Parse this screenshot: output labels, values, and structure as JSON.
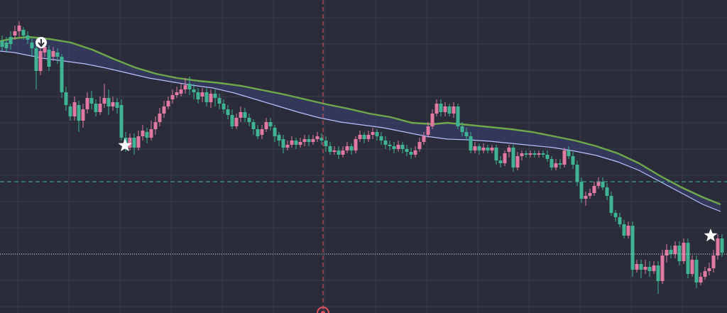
{
  "chart_data": {
    "type": "candlestick",
    "ylim": [
      0,
      441
    ],
    "grid": true,
    "colors": {
      "background": "#2b2c3a",
      "grid": "#3a3c4b",
      "bullish": "#e07aa1",
      "bearish": "#3fb394",
      "ema_fast": "#b9bfff",
      "ema_slow": "#6ea84a",
      "cloud_fill": "#3a4474",
      "crosshair_h": "#3fb394",
      "crosshair_v": "#e05060",
      "last_price_line": "#d8d8e0"
    },
    "crosshair": {
      "x": 455,
      "y": 256
    },
    "last_price": 358,
    "markers": [
      {
        "name": "signal-down-icon",
        "x": 58,
        "y": 60
      },
      {
        "name": "star-icon",
        "x": 176,
        "y": 205
      },
      {
        "name": "star-icon",
        "x": 1001,
        "y": 332
      }
    ],
    "candles": [
      [
        3,
        58,
        66,
        50,
        72
      ],
      [
        9,
        60,
        68,
        52,
        74
      ],
      [
        15,
        52,
        62,
        44,
        70
      ],
      [
        21,
        50,
        44,
        36,
        56
      ],
      [
        27,
        44,
        36,
        30,
        52
      ],
      [
        33,
        42,
        50,
        38,
        56
      ],
      [
        39,
        50,
        56,
        44,
        62
      ],
      [
        45,
        60,
        68,
        54,
        80
      ],
      [
        51,
        68,
        100,
        60,
        126
      ],
      [
        57,
        100,
        72,
        64,
        106
      ],
      [
        63,
        74,
        66,
        60,
        80
      ],
      [
        69,
        70,
        94,
        64,
        100
      ],
      [
        75,
        80,
        72,
        66,
        86
      ],
      [
        81,
        74,
        80,
        68,
        90
      ],
      [
        87,
        80,
        130,
        76,
        138
      ],
      [
        93,
        130,
        148,
        122,
        156
      ],
      [
        99,
        150,
        164,
        146,
        170
      ],
      [
        105,
        164,
        144,
        136,
        170
      ],
      [
        111,
        148,
        170,
        142,
        186
      ],
      [
        117,
        170,
        154,
        146,
        180
      ],
      [
        123,
        154,
        138,
        130,
        160
      ],
      [
        129,
        138,
        146,
        128,
        154
      ],
      [
        135,
        146,
        158,
        140,
        164
      ],
      [
        141,
        158,
        146,
        136,
        162
      ],
      [
        147,
        146,
        138,
        118,
        152
      ],
      [
        153,
        138,
        150,
        126,
        162
      ],
      [
        159,
        150,
        144,
        136,
        156
      ],
      [
        165,
        144,
        152,
        138,
        160
      ],
      [
        171,
        148,
        194,
        140,
        198
      ],
      [
        177,
        194,
        210,
        186,
        214
      ],
      [
        183,
        208,
        194,
        188,
        212
      ],
      [
        189,
        194,
        208,
        188,
        218
      ],
      [
        195,
        208,
        192,
        184,
        212
      ],
      [
        201,
        192,
        184,
        176,
        198
      ],
      [
        207,
        186,
        194,
        180,
        202
      ],
      [
        213,
        194,
        182,
        170,
        198
      ],
      [
        219,
        182,
        172,
        164,
        190
      ],
      [
        225,
        172,
        160,
        152,
        178
      ],
      [
        231,
        160,
        150,
        142,
        166
      ],
      [
        237,
        150,
        142,
        136,
        154
      ],
      [
        243,
        140,
        134,
        126,
        146
      ],
      [
        249,
        134,
        130,
        122,
        138
      ],
      [
        255,
        132,
        126,
        118,
        136
      ],
      [
        261,
        126,
        120,
        110,
        132
      ],
      [
        267,
        118,
        126,
        108,
        134
      ],
      [
        273,
        126,
        130,
        118,
        140
      ],
      [
        279,
        130,
        140,
        124,
        146
      ],
      [
        285,
        136,
        130,
        124,
        144
      ],
      [
        291,
        130,
        144,
        124,
        150
      ],
      [
        297,
        144,
        132,
        126,
        152
      ],
      [
        303,
        132,
        138,
        126,
        150
      ],
      [
        309,
        138,
        146,
        132,
        154
      ],
      [
        315,
        146,
        154,
        140,
        160
      ],
      [
        321,
        154,
        162,
        148,
        168
      ],
      [
        327,
        162,
        178,
        154,
        182
      ],
      [
        333,
        178,
        166,
        160,
        182
      ],
      [
        339,
        166,
        158,
        150,
        172
      ],
      [
        345,
        158,
        166,
        152,
        172
      ],
      [
        351,
        166,
        172,
        160,
        178
      ],
      [
        357,
        172,
        182,
        168,
        190
      ],
      [
        363,
        182,
        192,
        176,
        196
      ],
      [
        369,
        190,
        182,
        176,
        196
      ],
      [
        375,
        182,
        172,
        166,
        186
      ],
      [
        381,
        172,
        178,
        166,
        184
      ],
      [
        387,
        180,
        192,
        176,
        200
      ],
      [
        393,
        190,
        198,
        186,
        206
      ],
      [
        399,
        196,
        208,
        190,
        216
      ],
      [
        405,
        208,
        204,
        198,
        212
      ],
      [
        411,
        204,
        198,
        192,
        208
      ],
      [
        417,
        198,
        204,
        194,
        210
      ],
      [
        423,
        204,
        200,
        194,
        208
      ],
      [
        429,
        200,
        196,
        190,
        206
      ],
      [
        435,
        196,
        200,
        190,
        206
      ],
      [
        441,
        200,
        196,
        190,
        204
      ],
      [
        447,
        196,
        192,
        186,
        200
      ],
      [
        453,
        194,
        198,
        188,
        204
      ],
      [
        459,
        198,
        206,
        192,
        214
      ],
      [
        465,
        206,
        214,
        200,
        218
      ],
      [
        471,
        214,
        212,
        206,
        218
      ],
      [
        477,
        212,
        218,
        206,
        224
      ],
      [
        483,
        218,
        212,
        206,
        222
      ],
      [
        489,
        212,
        206,
        200,
        216
      ],
      [
        495,
        206,
        212,
        202,
        218
      ],
      [
        501,
        212,
        196,
        192,
        216
      ],
      [
        507,
        196,
        190,
        184,
        200
      ],
      [
        513,
        190,
        196,
        186,
        202
      ],
      [
        519,
        196,
        190,
        184,
        200
      ],
      [
        525,
        190,
        186,
        180,
        196
      ],
      [
        531,
        186,
        192,
        182,
        198
      ],
      [
        537,
        192,
        198,
        186,
        204
      ],
      [
        543,
        198,
        204,
        192,
        210
      ],
      [
        549,
        204,
        206,
        198,
        212
      ],
      [
        555,
        206,
        210,
        200,
        216
      ],
      [
        561,
        210,
        204,
        198,
        214
      ],
      [
        567,
        204,
        210,
        200,
        216
      ],
      [
        573,
        210,
        214,
        204,
        220
      ],
      [
        579,
        214,
        218,
        208,
        224
      ],
      [
        585,
        218,
        212,
        206,
        222
      ],
      [
        591,
        210,
        200,
        194,
        214
      ],
      [
        597,
        200,
        192,
        186,
        204
      ],
      [
        603,
        190,
        178,
        172,
        194
      ],
      [
        609,
        178,
        160,
        154,
        182
      ],
      [
        615,
        160,
        146,
        140,
        164
      ],
      [
        621,
        146,
        158,
        140,
        164
      ],
      [
        627,
        158,
        150,
        144,
        164
      ],
      [
        633,
        150,
        160,
        146,
        164
      ],
      [
        639,
        160,
        150,
        144,
        166
      ],
      [
        645,
        150,
        178,
        146,
        182
      ],
      [
        651,
        178,
        186,
        172,
        192
      ],
      [
        657,
        186,
        192,
        180,
        198
      ],
      [
        663,
        192,
        212,
        186,
        216
      ],
      [
        669,
        212,
        206,
        200,
        216
      ],
      [
        675,
        206,
        212,
        202,
        218
      ],
      [
        681,
        212,
        208,
        202,
        216
      ],
      [
        687,
        208,
        212,
        204,
        216
      ],
      [
        693,
        212,
        208,
        204,
        216
      ],
      [
        699,
        208,
        226,
        204,
        232
      ],
      [
        705,
        226,
        230,
        220,
        236
      ],
      [
        711,
        230,
        216,
        212,
        234
      ],
      [
        717,
        214,
        208,
        204,
        222
      ],
      [
        723,
        208,
        236,
        204,
        242
      ],
      [
        729,
        236,
        220,
        214,
        240
      ],
      [
        735,
        220,
        216,
        212,
        226
      ],
      [
        741,
        216,
        218,
        212,
        222
      ],
      [
        747,
        218,
        216,
        212,
        222
      ],
      [
        753,
        216,
        218,
        212,
        222
      ],
      [
        759,
        218,
        216,
        212,
        222
      ],
      [
        765,
        216,
        218,
        212,
        222
      ],
      [
        771,
        218,
        224,
        212,
        228
      ],
      [
        777,
        224,
        236,
        220,
        240
      ],
      [
        783,
        236,
        230,
        224,
        240
      ],
      [
        789,
        230,
        232,
        224,
        238
      ],
      [
        795,
        232,
        212,
        208,
        236
      ],
      [
        801,
        212,
        220,
        206,
        224
      ],
      [
        807,
        220,
        232,
        214,
        238
      ],
      [
        813,
        232,
        256,
        226,
        262
      ],
      [
        819,
        256,
        280,
        250,
        286
      ],
      [
        825,
        280,
        276,
        270,
        290
      ],
      [
        831,
        276,
        272,
        266,
        280
      ],
      [
        837,
        272,
        262,
        256,
        276
      ],
      [
        843,
        262,
        256,
        250,
        266
      ],
      [
        849,
        256,
        264,
        250,
        268
      ],
      [
        855,
        264,
        276,
        258,
        282
      ],
      [
        861,
        276,
        300,
        270,
        304
      ],
      [
        867,
        300,
        306,
        296,
        312
      ],
      [
        873,
        306,
        316,
        300,
        320
      ],
      [
        879,
        316,
        332,
        310,
        336
      ],
      [
        885,
        332,
        318,
        312,
        336
      ],
      [
        891,
        318,
        380,
        312,
        390
      ],
      [
        897,
        380,
        372,
        366,
        384
      ],
      [
        903,
        372,
        380,
        366,
        392
      ],
      [
        909,
        380,
        376,
        366,
        386
      ],
      [
        915,
        376,
        382,
        368,
        390
      ],
      [
        921,
        382,
        374,
        368,
        386
      ],
      [
        927,
        374,
        396,
        368,
        414
      ],
      [
        933,
        396,
        360,
        352,
        400
      ],
      [
        939,
        360,
        352,
        344,
        370
      ],
      [
        945,
        352,
        358,
        346,
        364
      ],
      [
        951,
        358,
        346,
        340,
        364
      ],
      [
        957,
        346,
        368,
        340,
        374
      ],
      [
        963,
        368,
        342,
        336,
        372
      ],
      [
        969,
        342,
        386,
        336,
        392
      ],
      [
        975,
        386,
        366,
        360,
        390
      ],
      [
        981,
        366,
        398,
        360,
        406
      ],
      [
        987,
        398,
        390,
        384,
        402
      ],
      [
        993,
        390,
        382,
        376,
        394
      ],
      [
        999,
        382,
        378,
        370,
        388
      ],
      [
        1005,
        378,
        360,
        352,
        384
      ],
      [
        1011,
        360,
        336,
        330,
        366
      ],
      [
        1017,
        336,
        356,
        330,
        362
      ]
    ],
    "ema_fast": [
      [
        0,
        72
      ],
      [
        20,
        74
      ],
      [
        40,
        78
      ],
      [
        60,
        82
      ],
      [
        90,
        86
      ],
      [
        120,
        90
      ],
      [
        150,
        96
      ],
      [
        180,
        103
      ],
      [
        210,
        110
      ],
      [
        240,
        115
      ],
      [
        270,
        120
      ],
      [
        300,
        124
      ],
      [
        330,
        131
      ],
      [
        360,
        140
      ],
      [
        390,
        149
      ],
      [
        420,
        158
      ],
      [
        450,
        166
      ],
      [
        480,
        172
      ],
      [
        510,
        176
      ],
      [
        540,
        180
      ],
      [
        570,
        186
      ],
      [
        600,
        192
      ],
      [
        630,
        196
      ],
      [
        660,
        197
      ],
      [
        690,
        199
      ],
      [
        720,
        202
      ],
      [
        750,
        205
      ],
      [
        780,
        208
      ],
      [
        810,
        213
      ],
      [
        840,
        219
      ],
      [
        870,
        228
      ],
      [
        900,
        240
      ],
      [
        930,
        256
      ],
      [
        960,
        272
      ],
      [
        990,
        288
      ],
      [
        1015,
        298
      ]
    ],
    "ema_slow": [
      [
        0,
        58
      ],
      [
        20,
        54
      ],
      [
        40,
        52
      ],
      [
        70,
        55
      ],
      [
        100,
        60
      ],
      [
        130,
        70
      ],
      [
        160,
        83
      ],
      [
        190,
        95
      ],
      [
        220,
        104
      ],
      [
        250,
        110
      ],
      [
        280,
        114
      ],
      [
        310,
        117
      ],
      [
        340,
        121
      ],
      [
        370,
        127
      ],
      [
        400,
        133
      ],
      [
        430,
        140
      ],
      [
        460,
        147
      ],
      [
        490,
        153
      ],
      [
        520,
        160
      ],
      [
        550,
        165
      ],
      [
        580,
        173
      ],
      [
        610,
        175
      ],
      [
        630,
        173
      ],
      [
        660,
        176
      ],
      [
        690,
        179
      ],
      [
        720,
        182
      ],
      [
        750,
        186
      ],
      [
        780,
        192
      ],
      [
        810,
        198
      ],
      [
        840,
        206
      ],
      [
        870,
        216
      ],
      [
        900,
        230
      ],
      [
        930,
        248
      ],
      [
        960,
        264
      ],
      [
        990,
        278
      ],
      [
        1015,
        288
      ]
    ]
  }
}
